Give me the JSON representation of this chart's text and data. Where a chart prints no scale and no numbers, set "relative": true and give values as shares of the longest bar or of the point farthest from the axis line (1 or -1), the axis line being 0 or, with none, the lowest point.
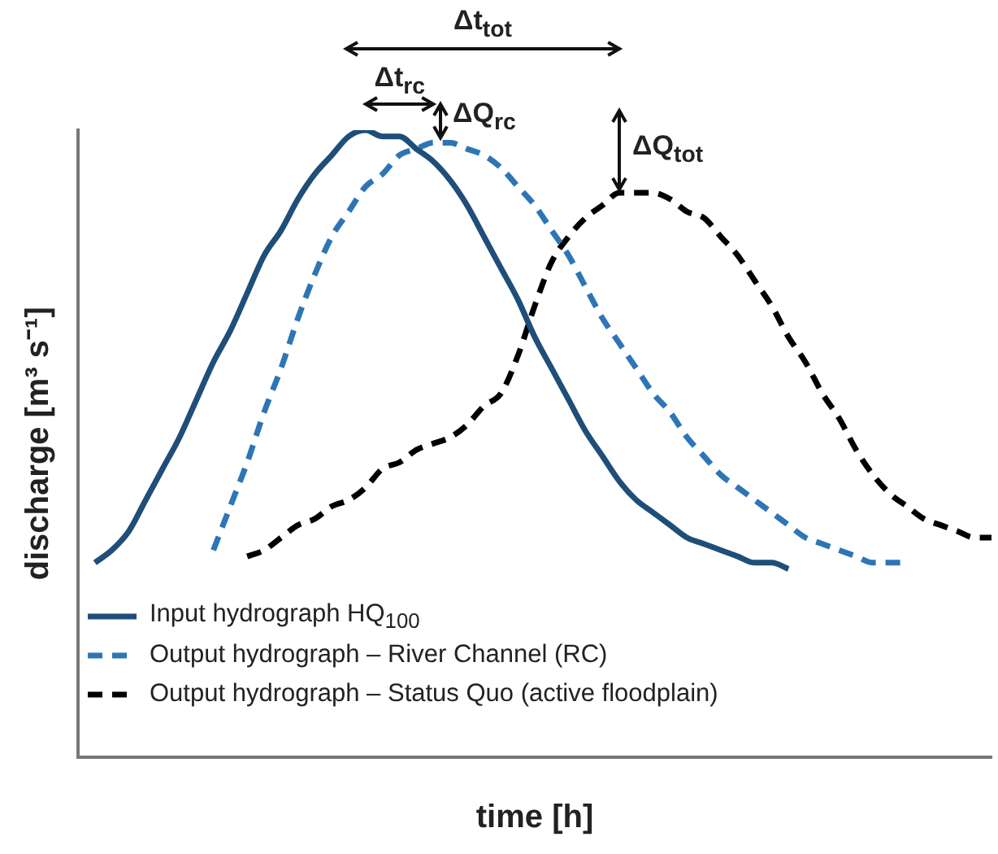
{
  "chart_data": {
    "type": "line",
    "relative": true,
    "xlabel": "time [h]",
    "ylabel": "discharge [m³ s⁻¹]",
    "legend": "bottom left",
    "grid": false,
    "marker": "none",
    "categories": [
      null,
      null,
      null,
      null,
      null,
      null,
      null,
      null,
      null,
      null,
      null,
      null,
      null,
      null,
      null,
      null,
      null,
      null,
      null,
      null,
      null,
      null,
      null,
      null,
      null,
      null,
      null,
      null,
      null,
      null,
      null,
      null,
      null,
      null,
      null,
      null,
      null,
      null,
      null,
      null,
      null,
      null,
      null,
      null,
      null,
      null,
      null,
      null,
      null,
      null,
      null,
      null,
      null,
      null,
      null
    ],
    "series": [
      {
        "name": "Input hydrograph HQ$_{100}$",
        "color": "#1f4e79",
        "line_style": "solid",
        "values": [
          null,
          0.31,
          0.33,
          0.36,
          0.41,
          0.46,
          0.51,
          0.57,
          0.63,
          0.68,
          0.74,
          0.8,
          0.84,
          0.89,
          0.93,
          0.96,
          0.99,
          1,
          0.99,
          0.99,
          0.97,
          0.95,
          0.92,
          0.88,
          0.83,
          0.78,
          0.73,
          0.67,
          0.62,
          0.57,
          0.52,
          0.48,
          0.44,
          0.41,
          0.39,
          0.37,
          0.35,
          0.34,
          0.33,
          0.32,
          0.31,
          0.31,
          0.3,
          null,
          null,
          null,
          null,
          null,
          null,
          null,
          null,
          null,
          null,
          null,
          null
        ]
      },
      {
        "name": "Output hydrograph – River Channel (RC)",
        "color": "#2e75b6",
        "line_style": "dashed",
        "values": [
          null,
          null,
          null,
          null,
          null,
          null,
          null,
          null,
          0.33,
          0.4,
          0.47,
          0.55,
          0.62,
          0.7,
          0.77,
          0.83,
          0.87,
          0.91,
          0.93,
          0.96,
          0.97,
          0.98,
          0.98,
          0.97,
          0.96,
          0.94,
          0.91,
          0.88,
          0.84,
          0.8,
          0.75,
          0.7,
          0.66,
          0.62,
          0.58,
          0.55,
          0.51,
          0.48,
          0.45,
          0.43,
          0.41,
          0.39,
          0.37,
          0.35,
          0.34,
          0.33,
          0.32,
          0.31,
          0.31,
          0.31,
          null,
          null,
          null,
          null,
          null
        ]
      },
      {
        "name": "Output hydrograph – Status Quo (active floodplain)",
        "color": "#000000",
        "line_style": "dashed",
        "values": [
          null,
          null,
          null,
          null,
          null,
          null,
          null,
          null,
          null,
          null,
          0.32,
          0.33,
          0.35,
          0.37,
          0.38,
          0.4,
          0.41,
          0.43,
          0.46,
          0.47,
          0.49,
          0.5,
          0.51,
          0.53,
          0.56,
          0.58,
          0.64,
          0.72,
          0.79,
          0.83,
          0.86,
          0.88,
          0.9,
          0.9,
          0.9,
          0.89,
          0.87,
          0.86,
          0.83,
          0.8,
          0.76,
          0.72,
          0.67,
          0.63,
          0.58,
          0.54,
          0.49,
          0.45,
          0.42,
          0.4,
          0.38,
          0.37,
          0.36,
          0.35,
          0.35
        ]
      }
    ],
    "annotations": [
      "Δt$_{tot}$",
      "Δt$_{rc}$",
      "ΔQ$_{rc}$",
      "ΔQ$_{tot}$"
    ]
  }
}
